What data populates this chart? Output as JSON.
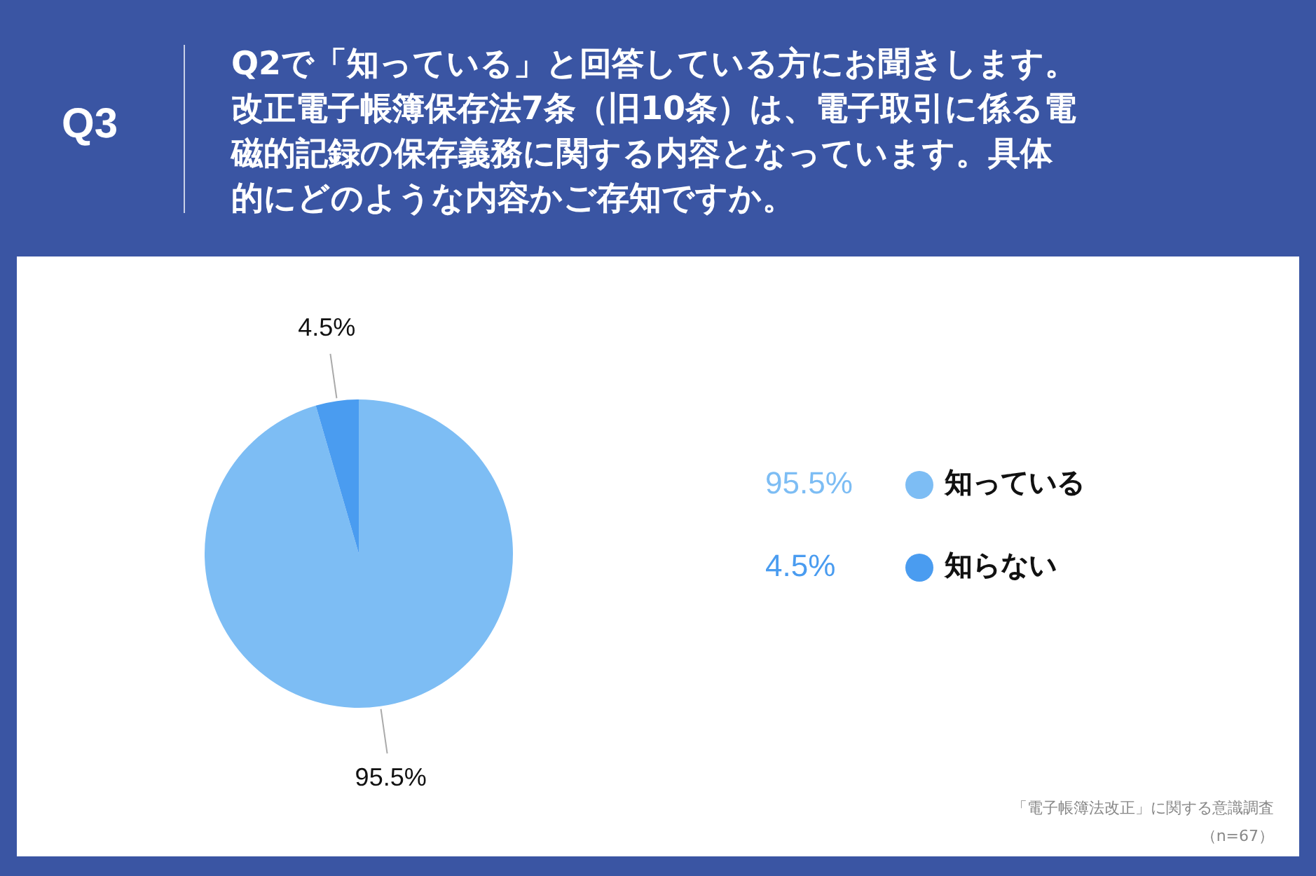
{
  "chart_data": {
    "type": "pie",
    "title": "Q2で「知っている」と回答している方にお聞きします。改正電子帳簿保存法7条（旧10条）は、電子取引に係る電磁的記録の保存義務に関する内容となっています。具体的にどのような内容かご存知ですか。",
    "categories": [
      "知っている",
      "知らない"
    ],
    "values": [
      95.5,
      4.5
    ],
    "value_labels": [
      "95.5%",
      "4.5%"
    ],
    "colors": [
      "#7dbdf4",
      "#4a9cf0"
    ],
    "data_labels": true,
    "legend": "right",
    "annotations": [
      "Q3",
      "「電子帳簿法改正」に関する意識調査",
      "（n=67）"
    ]
  }
}
